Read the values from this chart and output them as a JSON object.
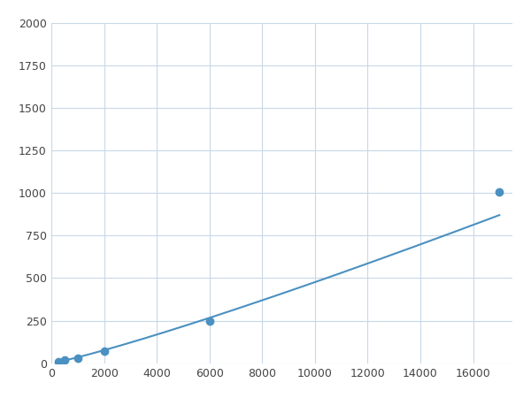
{
  "x_markers": [
    250,
    500,
    1000,
    2000,
    6000,
    17000
  ],
  "y_markers": [
    8,
    18,
    28,
    70,
    250,
    1005
  ],
  "x_curve": [
    250,
    500,
    1000,
    2000,
    6000,
    17000
  ],
  "y_curve": [
    8,
    18,
    28,
    70,
    250,
    1005
  ],
  "line_color": "#4a90c0",
  "marker_color": "#4a90c0",
  "marker_size": 6,
  "xlim": [
    0,
    17500
  ],
  "ylim": [
    0,
    2000
  ],
  "xticks": [
    0,
    2000,
    4000,
    6000,
    8000,
    10000,
    12000,
    14000,
    16000
  ],
  "yticks": [
    0,
    250,
    500,
    750,
    1000,
    1250,
    1500,
    1750,
    2000
  ],
  "grid_color": "#c8d8e8",
  "background_color": "#ffffff",
  "figure_bg": "#ffffff"
}
